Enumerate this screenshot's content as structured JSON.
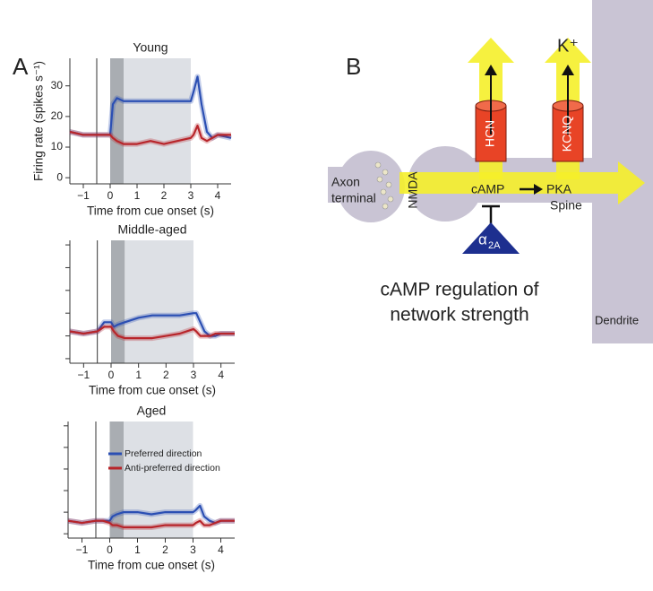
{
  "panel_labels": [
    "A",
    "B"
  ],
  "chart_data": [
    {
      "type": "line",
      "title": "Young",
      "xlabel": "Time from cue onset (s)",
      "ylabel": "Firing rate (spikes s⁻¹)",
      "x": [
        -1.5,
        -1,
        -0.5,
        -0.25,
        0,
        0.1,
        0.25,
        0.5,
        1,
        1.5,
        2,
        2.5,
        3,
        3.1,
        3.25,
        3.4,
        3.6,
        3.8,
        4,
        4.5
      ],
      "series": [
        {
          "name": "Preferred direction",
          "color": "#2b4fb3",
          "values": [
            15,
            14,
            14,
            14,
            14,
            24,
            26,
            25,
            25,
            25,
            25,
            25,
            25,
            28,
            33,
            24,
            15,
            13,
            14,
            13
          ]
        },
        {
          "name": "Anti-preferred direction",
          "color": "#b8252a",
          "values": [
            15,
            14,
            14,
            14,
            14,
            13,
            12,
            11,
            11,
            12,
            11,
            12,
            13,
            14,
            17,
            13,
            12,
            13,
            14,
            14
          ]
        }
      ],
      "xlim": [
        -1.5,
        4.5
      ],
      "xticks": [
        {
          "value": -1,
          "label": "−1"
        },
        0,
        1,
        2,
        3,
        4
      ],
      "ylim": [
        -2,
        39
      ],
      "yticks": [
        0,
        10,
        20,
        30
      ],
      "ytick_labels": true,
      "shades": [
        {
          "start": 0,
          "end": 0.5,
          "color": "#a9adb2"
        },
        {
          "start": 0.5,
          "end": 3,
          "color": "#dde0e5"
        }
      ],
      "vline": -0.5,
      "legend": false
    },
    {
      "type": "line",
      "title": "Middle-aged",
      "xlabel": "Time from cue onset (s)",
      "x": [
        -1.5,
        -1,
        -0.5,
        -0.25,
        0,
        0.1,
        0.25,
        0.5,
        1,
        1.5,
        2,
        2.5,
        3,
        3.1,
        3.25,
        3.4,
        3.6,
        3.8,
        4,
        4.5
      ],
      "series": [
        {
          "name": "Preferred direction",
          "color": "#2b4fb3",
          "values": [
            6,
            5.5,
            6,
            8,
            8,
            7,
            7.5,
            8,
            9,
            9.5,
            9.5,
            9.5,
            10,
            10,
            8,
            6,
            5,
            5,
            5.5,
            5.5
          ]
        },
        {
          "name": "Anti-preferred direction",
          "color": "#b8252a",
          "values": [
            6,
            5.5,
            6,
            7,
            7,
            6,
            5,
            4.5,
            4.5,
            4.5,
            5,
            5.5,
            6.5,
            6,
            5,
            5,
            5,
            5.5,
            5.5,
            5.5
          ]
        }
      ],
      "xlim": [
        -1.5,
        4.5
      ],
      "xticks": [
        {
          "value": -1,
          "label": "−1"
        },
        0,
        1,
        2,
        3,
        4
      ],
      "ylim": [
        -1,
        26
      ],
      "yticks": [
        0,
        5,
        10,
        15,
        20,
        25
      ],
      "ytick_labels": false,
      "shades": [
        {
          "start": 0,
          "end": 0.5,
          "color": "#a9adb2"
        },
        {
          "start": 0.5,
          "end": 3,
          "color": "#dde0e5"
        }
      ],
      "vline": -0.5,
      "legend": false
    },
    {
      "type": "line",
      "title": "Aged",
      "xlabel": "Time from cue onset (s)",
      "x": [
        -1.5,
        -1,
        -0.5,
        -0.25,
        0,
        0.1,
        0.25,
        0.5,
        1,
        1.5,
        2,
        2.5,
        3,
        3.1,
        3.25,
        3.4,
        3.6,
        3.8,
        4,
        4.5
      ],
      "series": [
        {
          "name": "Preferred direction",
          "color": "#2b4fb3",
          "values": [
            3,
            2.5,
            3,
            3,
            3,
            4,
            4.5,
            5,
            5,
            4.5,
            5,
            5,
            5,
            5.5,
            6.5,
            4,
            3,
            2.5,
            3,
            3
          ]
        },
        {
          "name": "Anti-preferred direction",
          "color": "#b8252a",
          "values": [
            3,
            2.5,
            3,
            3,
            2.5,
            2,
            2,
            1.5,
            1.5,
            1.5,
            2,
            2,
            2,
            2.5,
            3,
            2,
            2,
            2.5,
            3,
            3
          ]
        }
      ],
      "xlim": [
        -1.5,
        4.5
      ],
      "xticks": [
        {
          "value": -1,
          "label": "−1"
        },
        0,
        1,
        2,
        3,
        4
      ],
      "ylim": [
        -1,
        26
      ],
      "yticks": [
        0,
        5,
        10,
        15,
        20,
        25
      ],
      "ytick_labels": false,
      "shades": [
        {
          "start": 0,
          "end": 0.5,
          "color": "#a9adb2"
        },
        {
          "start": 0.5,
          "end": 3,
          "color": "#dde0e5"
        }
      ],
      "vline": -0.5,
      "legend": true
    }
  ],
  "diagram": {
    "axon": "Axon",
    "terminal": "terminal",
    "nmda": "NMDA",
    "camp": "cAMP",
    "pka": "PKA",
    "spine": "Spine",
    "hcn": "HCN",
    "kcnq": "KCNQ",
    "k_ion": "K⁺",
    "alpha": "α",
    "alpha_sub": "2A",
    "caption": [
      "cAMP regulation of",
      "network strength"
    ],
    "dendrite": "Dendrite"
  }
}
